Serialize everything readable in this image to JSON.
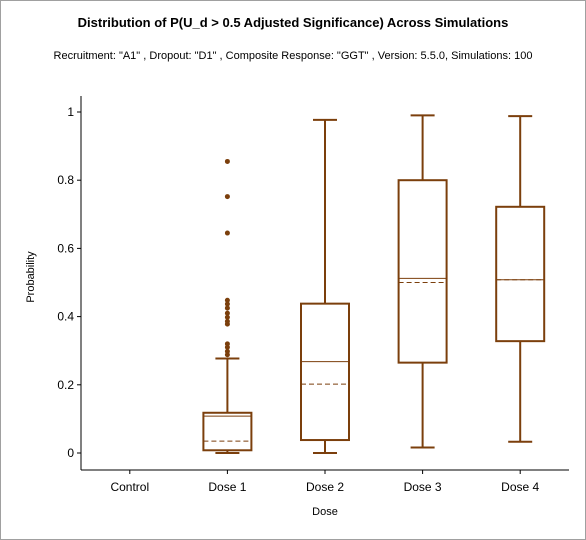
{
  "chart_data": {
    "type": "box",
    "title": "Distribution of P(U_d > 0.5 Adjusted Significance) Across Simulations",
    "subtitle": "Recruitment: \"A1\" , Dropout: \"D1\" , Composite Response: \"GGT\" , Version: 5.5.0, Simulations: 100",
    "xlabel": "Dose",
    "ylabel": "Probability",
    "ylim": [
      0,
      1
    ],
    "yticks": [
      0,
      0.2,
      0.4,
      0.6,
      0.8,
      1
    ],
    "ytick_labels": [
      "0",
      "0.2",
      "0.4",
      "0.6",
      "0.8",
      "1"
    ],
    "grid": false,
    "legend": "none",
    "categories": [
      "Control",
      "Dose 1",
      "Dose 2",
      "Dose 3",
      "Dose 4"
    ],
    "boxes": [
      {
        "category": "Control",
        "has_data": false
      },
      {
        "category": "Dose 1",
        "has_data": true,
        "whisker_low": 0.0,
        "q1": 0.008,
        "median": 0.108,
        "mean": 0.035,
        "q3": 0.118,
        "whisker_high": 0.277,
        "outliers": [
          0.288,
          0.298,
          0.31,
          0.32,
          0.378,
          0.386,
          0.398,
          0.41,
          0.425,
          0.437,
          0.448,
          0.645,
          0.752,
          0.855
        ]
      },
      {
        "category": "Dose 2",
        "has_data": true,
        "whisker_low": 0.0,
        "q1": 0.038,
        "median": 0.268,
        "mean": 0.202,
        "q3": 0.438,
        "whisker_high": 0.977,
        "outliers": []
      },
      {
        "category": "Dose 3",
        "has_data": true,
        "whisker_low": 0.016,
        "q1": 0.265,
        "median": 0.512,
        "mean": 0.5,
        "q3": 0.8,
        "whisker_high": 0.99,
        "outliers": []
      },
      {
        "category": "Dose 4",
        "has_data": true,
        "whisker_low": 0.033,
        "q1": 0.328,
        "median": 0.508,
        "mean": 0.508,
        "q3": 0.722,
        "whisker_high": 0.988,
        "outliers": []
      }
    ],
    "colors": {
      "box": "#7b3f0c",
      "axis": "#000000"
    }
  }
}
